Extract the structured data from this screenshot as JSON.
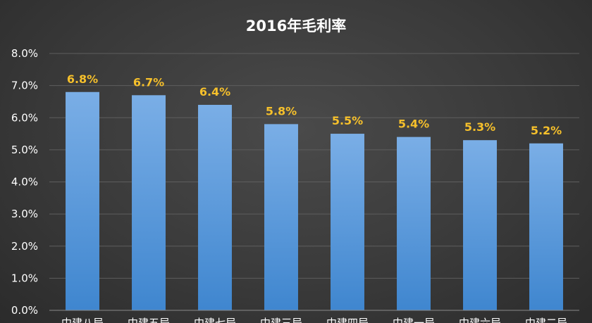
{
  "chart_data": {
    "type": "bar",
    "title": "2016年毛利率",
    "categories": [
      "中建八局",
      "中建五局",
      "中建七局",
      "中建三局",
      "中建四局",
      "中建一局",
      "中建六局",
      "中建二局"
    ],
    "values": [
      6.8,
      6.7,
      6.4,
      5.8,
      5.5,
      5.4,
      5.3,
      5.2
    ],
    "data_labels": [
      "6.8%",
      "6.7%",
      "6.4%",
      "5.8%",
      "5.5%",
      "5.4%",
      "5.3%",
      "5.2%"
    ],
    "y_ticks": [
      "0.0%",
      "1.0%",
      "2.0%",
      "3.0%",
      "4.0%",
      "5.0%",
      "6.0%",
      "7.0%",
      "8.0%"
    ],
    "ylim": [
      0,
      8
    ],
    "y_unit": "%",
    "grid": true,
    "legend": "none",
    "colors": {
      "bar_top": "#7aaee6",
      "bar_bottom": "#3f86cf",
      "label": "#f6c02b"
    }
  }
}
